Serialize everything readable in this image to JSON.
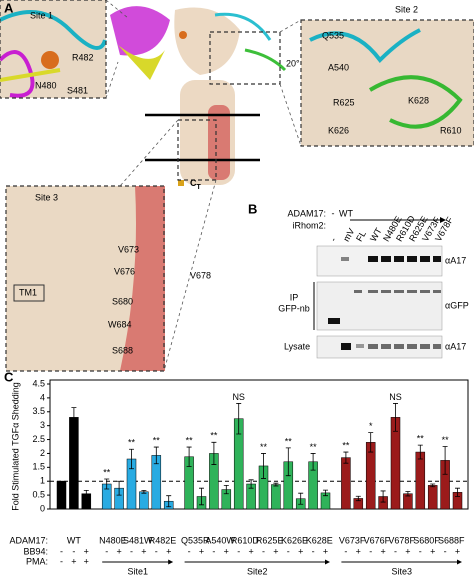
{
  "panel_a": {
    "label": "A",
    "site1": {
      "title": "Site 1",
      "residues": [
        "R482",
        "N480",
        "S481"
      ]
    },
    "site2": {
      "title": "Site 2",
      "rotation": "20°",
      "residues": [
        "Q535",
        "A540",
        "R625",
        "K628",
        "K626",
        "R610"
      ]
    },
    "site3": {
      "title": "Site 3",
      "residues": [
        "V673",
        "V676",
        "V678",
        "TM1",
        "S680",
        "W684",
        "S688"
      ]
    },
    "terminus": {
      "main": "C",
      "sub": "T"
    }
  },
  "panel_b": {
    "label": "B",
    "adam17_label": "ADAM17:",
    "irhom2_label": "iRhom2:",
    "adam17": [
      "-",
      "WT"
    ],
    "irhom2": [
      "-",
      "mV",
      "FL",
      "WT",
      "N480E",
      "R610D",
      "R625E",
      "V673F",
      "V678F"
    ],
    "row_labels": [
      "αA17",
      "αGFP",
      "αA17"
    ],
    "ip_label": "IP",
    "ip_antibody": "GFP-nb",
    "lysate_label": "Lysate"
  },
  "panel_c": {
    "label": "C"
  },
  "chart_data": {
    "type": "bar",
    "ylabel": "Fold Stimulated TGFα Shedding",
    "ylim": [
      0,
      4.5
    ],
    "yticks": [
      0,
      0.5,
      1,
      1.5,
      2,
      2.5,
      3,
      3.5,
      4,
      4.5
    ],
    "reference_line": 1,
    "row_labels": [
      "ADAM17:",
      "BB94:",
      "PMA:"
    ],
    "sets": [
      {
        "color": "#000000",
        "items": [
          {
            "label": "WT",
            "values": [
              1.0,
              3.3,
              0.55
            ],
            "errors": [
              0,
              0.35,
              0.12
            ],
            "bb94": [
              "-",
              "-",
              "+"
            ],
            "pma": [
              "-",
              "+",
              "+"
            ]
          }
        ]
      },
      {
        "name": "Site1",
        "color": "#29abe2",
        "items": [
          {
            "label": "N480E",
            "values": [
              0.9,
              0.75
            ],
            "errors": [
              0.18,
              0.25
            ],
            "bb94": [
              "-",
              "+"
            ],
            "sig": "**"
          },
          {
            "label": "S481W",
            "values": [
              1.8,
              0.62
            ],
            "errors": [
              0.35,
              0.05
            ],
            "bb94": [
              "-",
              "+"
            ],
            "sig": "**"
          },
          {
            "label": "R482E",
            "values": [
              1.93,
              0.28
            ],
            "errors": [
              0.3,
              0.2
            ],
            "bb94": [
              "-",
              "+"
            ],
            "sig": "**"
          }
        ]
      },
      {
        "name": "Site2",
        "color": "#2fb35a",
        "items": [
          {
            "label": "Q535R",
            "values": [
              1.88,
              0.45
            ],
            "errors": [
              0.35,
              0.3
            ],
            "bb94": [
              "-",
              "+"
            ],
            "sig": "**"
          },
          {
            "label": "A540W",
            "values": [
              2.0,
              0.7
            ],
            "errors": [
              0.4,
              0.15
            ],
            "bb94": [
              "-",
              "+"
            ],
            "sig": "**"
          },
          {
            "label": "R610D",
            "values": [
              3.25,
              0.9
            ],
            "errors": [
              0.55,
              0.15
            ],
            "bb94": [
              "-",
              "+"
            ],
            "sig": "NS"
          },
          {
            "label": "R625E",
            "values": [
              1.55,
              0.88
            ],
            "errors": [
              0.45,
              0.05
            ],
            "bb94": [
              "-",
              "+"
            ],
            "sig": "**"
          },
          {
            "label": "K626E",
            "values": [
              1.7,
              0.37
            ],
            "errors": [
              0.5,
              0.2
            ],
            "bb94": [
              "-",
              "+"
            ],
            "sig": "**"
          },
          {
            "label": "K628E",
            "values": [
              1.7,
              0.58
            ],
            "errors": [
              0.3,
              0.1
            ],
            "bb94": [
              "-",
              "+"
            ],
            "sig": "**"
          }
        ]
      },
      {
        "name": "Site3",
        "color": "#9b1b1b",
        "items": [
          {
            "label": "V673F",
            "values": [
              1.85,
              0.38
            ],
            "errors": [
              0.2,
              0.08
            ],
            "bb94": [
              "-",
              "+"
            ],
            "sig": "**"
          },
          {
            "label": "V676F",
            "values": [
              2.4,
              0.45
            ],
            "errors": [
              0.35,
              0.2
            ],
            "bb94": [
              "-",
              "+"
            ],
            "sig": "*"
          },
          {
            "label": "V678F",
            "values": [
              3.3,
              0.55
            ],
            "errors": [
              0.5,
              0.08
            ],
            "bb94": [
              "-",
              "+"
            ],
            "sig": "NS"
          },
          {
            "label": "S680F",
            "values": [
              2.05,
              0.85
            ],
            "errors": [
              0.25,
              0.05
            ],
            "bb94": [
              "-",
              "+"
            ],
            "sig": "**"
          },
          {
            "label": "S688F",
            "values": [
              1.75,
              0.6
            ],
            "errors": [
              0.5,
              0.15
            ],
            "bb94": [
              "-",
              "+"
            ],
            "sig": "**"
          }
        ]
      }
    ]
  }
}
